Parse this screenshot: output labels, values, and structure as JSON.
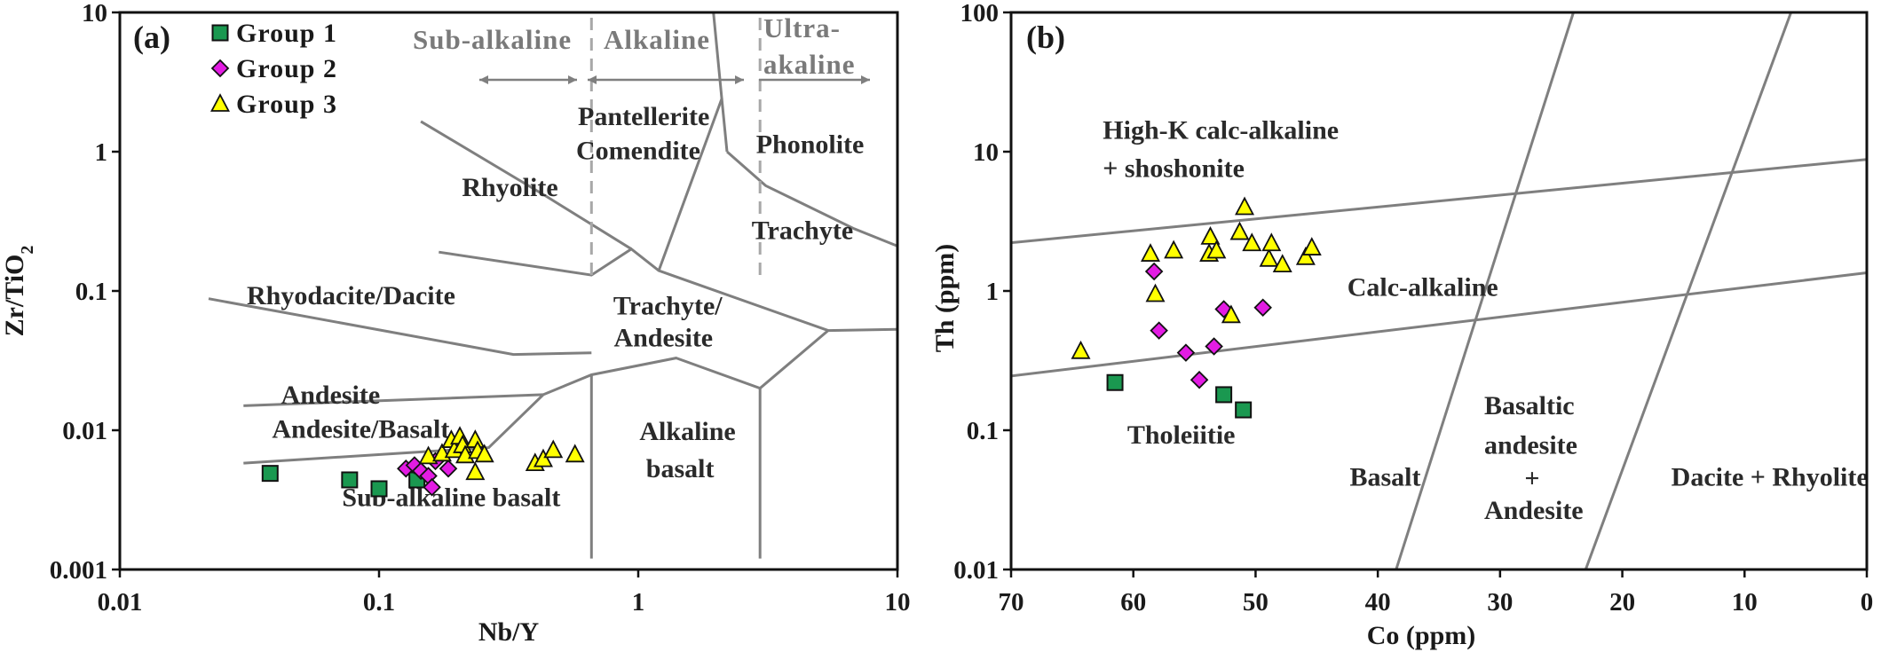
{
  "chart_data": [
    {
      "panel": "(a)",
      "type": "scatter",
      "xlabel": "Nb/Y",
      "ylabel": "Zr/TiO2",
      "x_scale": "log",
      "y_scale": "log",
      "xlim": [
        0.01,
        10
      ],
      "ylim": [
        0.001,
        10
      ],
      "x_ticks": [
        {
          "value": 0.01,
          "label": "0.01"
        },
        {
          "value": 0.1,
          "label": "0.1"
        },
        {
          "value": 1,
          "label": "1"
        },
        {
          "value": 10,
          "label": "10"
        }
      ],
      "y_ticks": [
        {
          "value": 0.001,
          "label": "0.001"
        },
        {
          "value": 0.01,
          "label": "0.01"
        },
        {
          "value": 0.1,
          "label": "0.1"
        },
        {
          "value": 1,
          "label": "1"
        },
        {
          "value": 10,
          "label": "10"
        }
      ],
      "legend": {
        "placement": "top-left"
      },
      "series": [
        {
          "name": "Group 1",
          "marker": "square",
          "color": "#1a9850",
          "points": [
            [
              0.038,
              0.0049
            ],
            [
              0.077,
              0.0044
            ],
            [
              0.1,
              0.0038
            ],
            [
              0.14,
              0.0044
            ]
          ]
        },
        {
          "name": "Group 2",
          "marker": "diamond",
          "color": "#e31ce3",
          "points": [
            [
              0.127,
              0.0053
            ],
            [
              0.137,
              0.0056
            ],
            [
              0.145,
              0.0051
            ],
            [
              0.155,
              0.0047
            ],
            [
              0.165,
              0.006
            ],
            [
              0.185,
              0.0053
            ],
            [
              0.16,
              0.0039
            ]
          ]
        },
        {
          "name": "Group 3",
          "marker": "triangle",
          "color": "#ffff00",
          "points": [
            [
              0.155,
              0.0065
            ],
            [
              0.175,
              0.0068
            ],
            [
              0.19,
              0.0085
            ],
            [
              0.195,
              0.0072
            ],
            [
              0.205,
              0.009
            ],
            [
              0.21,
              0.0078
            ],
            [
              0.215,
              0.0066
            ],
            [
              0.235,
              0.0085
            ],
            [
              0.24,
              0.0071
            ],
            [
              0.255,
              0.0067
            ],
            [
              0.235,
              0.005
            ],
            [
              0.4,
              0.0058
            ],
            [
              0.43,
              0.0062
            ],
            [
              0.47,
              0.0072
            ],
            [
              0.57,
              0.0067
            ]
          ]
        }
      ],
      "boundaries": [
        [
          [
            0.022,
            0.088
          ],
          [
            0.33,
            0.035
          ],
          [
            0.66,
            0.036
          ]
        ],
        [
          [
            0.03,
            0.015
          ],
          [
            0.43,
            0.018
          ]
        ],
        [
          [
            0.03,
            0.0058
          ],
          [
            0.265,
            0.0075
          ],
          [
            0.43,
            0.018
          ],
          [
            0.66,
            0.025
          ],
          [
            1.4,
            0.033
          ],
          [
            2.95,
            0.02
          ],
          [
            5.4,
            0.052
          ],
          [
            10,
            0.053
          ]
        ],
        [
          [
            0.17,
            0.19
          ],
          [
            0.66,
            0.13
          ],
          [
            0.94,
            0.2
          ],
          [
            1.2,
            0.14
          ],
          [
            5.4,
            0.052
          ]
        ],
        [
          [
            0.0,
            0.0
          ]
        ],
        [
          [
            0.145,
            1.65
          ],
          [
            0.44,
            0.48
          ],
          [
            0.94,
            0.2
          ]
        ],
        [
          [
            1.2,
            0.14
          ],
          [
            2.1,
            2.4
          ],
          [
            1.95,
            10
          ]
        ],
        [
          [
            2.2,
            1.0
          ],
          [
            3.1,
            0.57
          ],
          [
            6.8,
            0.28
          ],
          [
            10,
            0.21
          ]
        ],
        [
          [
            2.2,
            1.0
          ],
          [
            2.1,
            2.4
          ]
        ],
        [
          [
            0.66,
            0.025
          ],
          [
            0.66,
            0.0012
          ]
        ],
        [
          [
            2.95,
            0.02
          ],
          [
            2.95,
            0.0012
          ]
        ]
      ],
      "divider_lines": [
        0.66,
        2.95
      ],
      "fields": [
        {
          "label": "Pantellerite",
          "at": [
            1.05,
            1.55
          ]
        },
        {
          "label": "Comendite",
          "at": [
            1.0,
            0.88
          ]
        },
        {
          "label": "Phonolite",
          "at": [
            4.6,
            0.98
          ]
        },
        {
          "label": "Rhyolite",
          "at": [
            0.32,
            0.48
          ]
        },
        {
          "label": "Trachyte",
          "at": [
            4.3,
            0.235
          ]
        },
        {
          "label": "Rhyodacite/Dacite",
          "at": [
            0.078,
            0.08
          ]
        },
        {
          "label": "Trachyte/",
          "at": [
            1.3,
            0.068
          ]
        },
        {
          "label": "Andesite",
          "at": [
            1.25,
            0.04
          ]
        },
        {
          "label": "Andesite",
          "at": [
            0.065,
            0.0155
          ]
        },
        {
          "label": "Andesite/Basalt",
          "at": [
            0.085,
            0.0088
          ]
        },
        {
          "label": "Alkaline",
          "at": [
            1.55,
            0.0085
          ]
        },
        {
          "label": "basalt",
          "at": [
            1.45,
            0.0046
          ]
        },
        {
          "label": "Sub-alkaline basalt",
          "at": [
            0.19,
            0.00285
          ]
        }
      ],
      "header": {
        "left": "Sub-alkaline",
        "middle": "Alkaline",
        "right_top": "Ultra-",
        "right_bottom": "akaline"
      }
    },
    {
      "panel": "(b)",
      "type": "scatter",
      "xlabel": "Co (ppm)",
      "ylabel": "Th (ppm)",
      "x_scale": "linear-reversed",
      "y_scale": "log",
      "xlim": [
        70,
        0
      ],
      "ylim": [
        0.01,
        100
      ],
      "x_ticks": [
        {
          "value": 70,
          "label": "70"
        },
        {
          "value": 60,
          "label": "60"
        },
        {
          "value": 50,
          "label": "50"
        },
        {
          "value": 40,
          "label": "40"
        },
        {
          "value": 30,
          "label": "30"
        },
        {
          "value": 20,
          "label": "20"
        },
        {
          "value": 10,
          "label": "10"
        },
        {
          "value": 0,
          "label": "0"
        }
      ],
      "y_ticks": [
        {
          "value": 0.01,
          "label": "0.01"
        },
        {
          "value": 0.1,
          "label": "0.1"
        },
        {
          "value": 1,
          "label": "1"
        },
        {
          "value": 10,
          "label": "10"
        },
        {
          "value": 100,
          "label": "100"
        }
      ],
      "series": [
        {
          "name": "Group 1",
          "marker": "square",
          "color": "#1a9850",
          "points": [
            [
              61.5,
              0.22
            ],
            [
              52.6,
              0.18
            ],
            [
              51.0,
              0.14
            ]
          ]
        },
        {
          "name": "Group 2",
          "marker": "diamond",
          "color": "#e31ce3",
          "points": [
            [
              58.3,
              1.38
            ],
            [
              57.9,
              0.52
            ],
            [
              55.7,
              0.36
            ],
            [
              54.6,
              0.23
            ],
            [
              53.4,
              0.4
            ],
            [
              52.6,
              0.74
            ],
            [
              49.4,
              0.76
            ]
          ]
        },
        {
          "name": "Group 3",
          "marker": "triangle",
          "color": "#ffff00",
          "points": [
            [
              64.3,
              0.37
            ],
            [
              58.6,
              1.85
            ],
            [
              58.2,
              0.95
            ],
            [
              56.7,
              1.95
            ],
            [
              53.8,
              1.85
            ],
            [
              53.7,
              2.45
            ],
            [
              53.2,
              1.95
            ],
            [
              52.0,
              0.67
            ],
            [
              51.3,
              2.65
            ],
            [
              50.9,
              4.0
            ],
            [
              50.3,
              2.2
            ],
            [
              48.9,
              1.7
            ],
            [
              48.7,
              2.2
            ],
            [
              47.8,
              1.55
            ],
            [
              45.9,
              1.75
            ],
            [
              45.4,
              2.05
            ]
          ]
        }
      ],
      "boundaries": [
        [
          [
            70,
            2.22
          ],
          [
            0,
            8.8
          ]
        ],
        [
          [
            70,
            0.245
          ],
          [
            0,
            1.35
          ]
        ],
        [
          [
            38.5,
            0.01
          ],
          [
            24,
            100
          ]
        ],
        [
          [
            23,
            0.01
          ],
          [
            6.2,
            100
          ]
        ]
      ],
      "fields": [
        {
          "label": "High-K calc-alkaline",
          "at": [
            62.5,
            12.4
          ]
        },
        {
          "label": "+ shoshonite",
          "at": [
            62.5,
            6.6
          ]
        },
        {
          "label": "Calc-alkaline",
          "at": [
            42.5,
            0.92
          ]
        },
        {
          "label": "Tholeiitie",
          "at": [
            60.5,
            0.08
          ]
        },
        {
          "label": "Basalt",
          "at": [
            42.3,
            0.04
          ]
        },
        {
          "label": "Basaltic",
          "at": [
            31.3,
            0.13
          ]
        },
        {
          "label": "andesite",
          "at": [
            31.3,
            0.068
          ]
        },
        {
          "label": "+",
          "at": [
            28.0,
            0.039
          ]
        },
        {
          "label": "Andesite",
          "at": [
            31.3,
            0.023
          ]
        },
        {
          "label": "Dacite + Rhyolite",
          "at": [
            16.0,
            0.04
          ]
        }
      ]
    }
  ]
}
